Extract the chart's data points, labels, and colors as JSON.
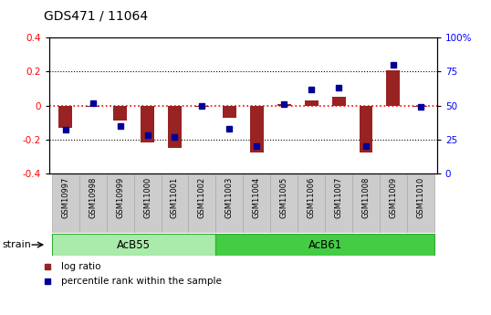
{
  "title": "GDS471 / 11064",
  "samples": [
    "GSM10997",
    "GSM10998",
    "GSM10999",
    "GSM11000",
    "GSM11001",
    "GSM11002",
    "GSM11003",
    "GSM11004",
    "GSM11005",
    "GSM11006",
    "GSM11007",
    "GSM11008",
    "GSM11009",
    "GSM11010"
  ],
  "log_ratio": [
    -0.13,
    -0.01,
    -0.09,
    -0.22,
    -0.25,
    -0.01,
    -0.07,
    -0.28,
    0.01,
    0.03,
    0.05,
    -0.28,
    0.21,
    -0.01
  ],
  "percentile_rank": [
    32,
    52,
    35,
    28,
    27,
    50,
    33,
    20,
    51,
    62,
    63,
    20,
    80,
    49
  ],
  "ylim_left": [
    -0.4,
    0.4
  ],
  "yticks_left": [
    -0.4,
    -0.2,
    0.0,
    0.2,
    0.4
  ],
  "ytick_labels_left": [
    "-0.4",
    "-0.2",
    "0",
    "0.2",
    "0.4"
  ],
  "yticks_right_pct": [
    0,
    25,
    50,
    75,
    100
  ],
  "ytick_labels_right": [
    "0",
    "25",
    "50",
    "75",
    "100%"
  ],
  "bar_color": "#992222",
  "dot_color": "#000099",
  "zero_line_color": "#FF0000",
  "grid_line_color": "#000000",
  "acb55_color": "#AAEAAA",
  "acb61_color": "#44CC44",
  "group_edge_color": "#33AA33",
  "sample_box_color": "#CCCCCC",
  "sample_box_edge": "#AAAAAA"
}
